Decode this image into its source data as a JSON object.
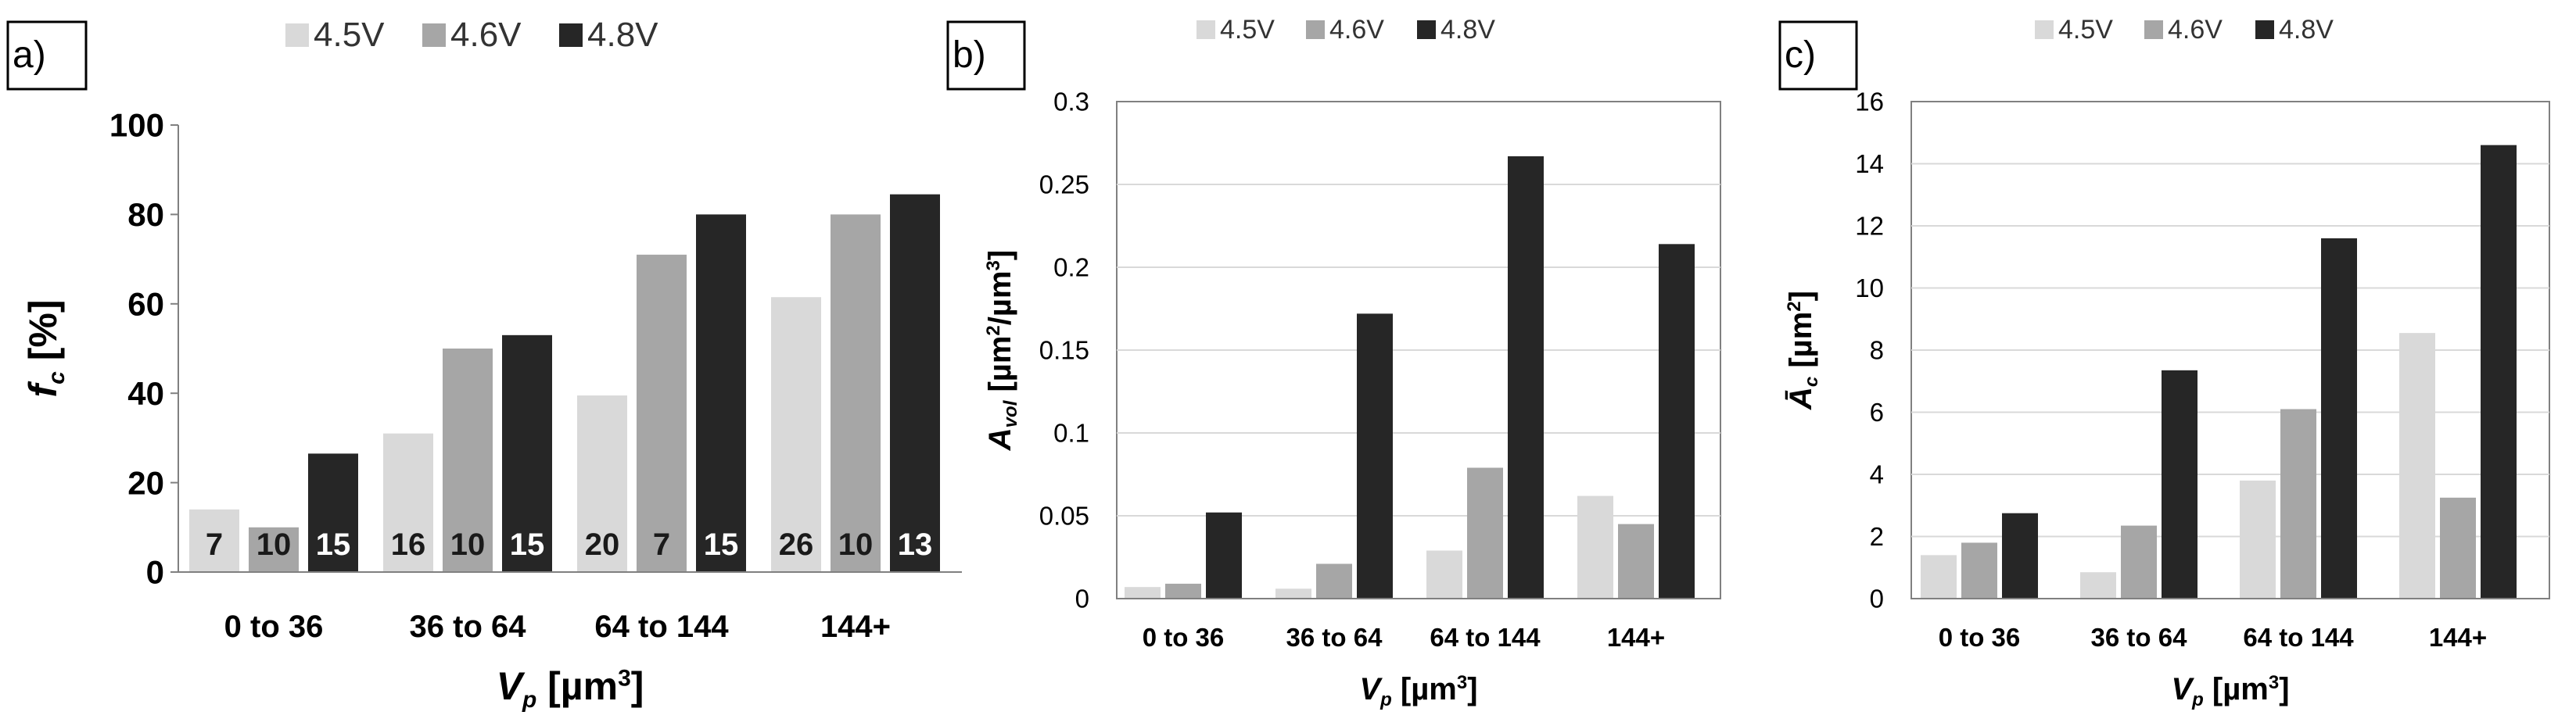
{
  "colors": {
    "s45": "#d9d9d9",
    "s46": "#a6a6a6",
    "s48": "#262626",
    "axis": "#808080",
    "grid": "#d9d9d9"
  },
  "chart_data": [
    {
      "type": "bar",
      "panel": "a)",
      "legend": [
        "4.5V",
        "4.6V",
        "4.8V"
      ],
      "legend_position": "top",
      "categories": [
        "0 to 36",
        "36 to 64",
        "64 to 144",
        "144+"
      ],
      "series": [
        {
          "name": "4.5V",
          "values": [
            14,
            31,
            39.5,
            61.5
          ],
          "labels": [
            "7",
            "16",
            "20",
            "26"
          ]
        },
        {
          "name": "4.6V",
          "values": [
            10,
            50,
            71,
            80
          ],
          "labels": [
            "10",
            "10",
            "7",
            "10"
          ]
        },
        {
          "name": "4.8V",
          "values": [
            26.5,
            53,
            80,
            84.5
          ],
          "labels": [
            "15",
            "15",
            "15",
            "13"
          ]
        }
      ],
      "ylabel": "f",
      "ylabel_sub": "c",
      "ylabel_unit": " [%]",
      "xlabel": "V",
      "xlabel_sub": "p",
      "xlabel_unit": " [µm",
      "xlabel_sup": "3",
      "xlabel_close": "]",
      "ylim": [
        0,
        100
      ],
      "yticks": [
        "0",
        "20",
        "40",
        "60",
        "80",
        "100"
      ],
      "grid": false
    },
    {
      "type": "bar",
      "panel": "b)",
      "legend": [
        "4.5V",
        "4.6V",
        "4.8V"
      ],
      "legend_position": "top",
      "categories": [
        "0 to 36",
        "36 to 64",
        "64 to 144",
        "144+"
      ],
      "series": [
        {
          "name": "4.5V",
          "values": [
            0.007,
            0.006,
            0.029,
            0.062
          ]
        },
        {
          "name": "4.6V",
          "values": [
            0.009,
            0.021,
            0.079,
            0.045
          ]
        },
        {
          "name": "4.8V",
          "values": [
            0.052,
            0.172,
            0.267,
            0.214
          ]
        }
      ],
      "ylabel": "A",
      "ylabel_sub": "vol",
      "ylabel_unit": " [µm",
      "ylabel_sup": "2",
      "ylabel_unit2": "/µm",
      "ylabel_sup2": "3",
      "ylabel_close": "]",
      "xlabel": "V",
      "xlabel_sub": "p",
      "xlabel_unit": " [µm",
      "xlabel_sup": "3",
      "xlabel_close": "]",
      "ylim": [
        0,
        0.3
      ],
      "yticks": [
        "0",
        "0.05",
        "0.1",
        "0.15",
        "0.2",
        "0.25",
        "0.3"
      ],
      "grid": true
    },
    {
      "type": "bar",
      "panel": "c)",
      "legend": [
        "4.5V",
        "4.6V",
        "4.8V"
      ],
      "legend_position": "top",
      "categories": [
        "0 to 36",
        "36 to 64",
        "64 to 144",
        "144+"
      ],
      "series": [
        {
          "name": "4.5V",
          "values": [
            1.4,
            0.85,
            3.8,
            8.55
          ]
        },
        {
          "name": "4.6V",
          "values": [
            1.8,
            2.35,
            6.1,
            3.25
          ]
        },
        {
          "name": "4.8V",
          "values": [
            2.75,
            7.35,
            11.6,
            14.6
          ]
        }
      ],
      "ylabel": "Ā",
      "ylabel_sub": "c",
      "ylabel_unit": " [µm",
      "ylabel_sup": "2",
      "ylabel_close": "]",
      "xlabel": "V",
      "xlabel_sub": "p",
      "xlabel_unit": " [µm",
      "xlabel_sup": "3",
      "xlabel_close": "]",
      "ylim": [
        0,
        16
      ],
      "yticks": [
        "0",
        "2",
        "4",
        "6",
        "8",
        "10",
        "12",
        "14",
        "16"
      ],
      "grid": true
    }
  ]
}
